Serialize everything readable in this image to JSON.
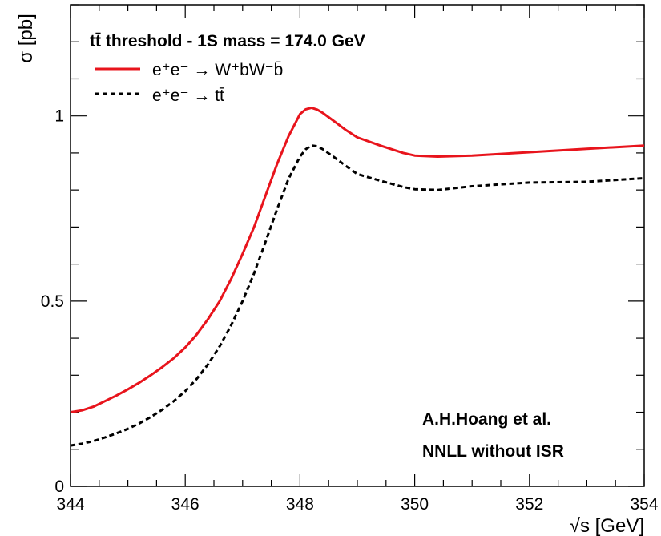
{
  "chart_data": {
    "type": "line",
    "legend_title": "tt̄ threshold - 1S mass = 174.0 GeV",
    "xlabel": "√s [GeV]",
    "ylabel": "σ [pb]",
    "xlim": [
      344,
      354
    ],
    "ylim": [
      0,
      1.3
    ],
    "x_ticks": [
      {
        "value": 344,
        "label": "344"
      },
      {
        "value": 346,
        "label": "346"
      },
      {
        "value": 348,
        "label": "348"
      },
      {
        "value": 350,
        "label": "350"
      },
      {
        "value": 352,
        "label": "352"
      },
      {
        "value": 354,
        "label": "354"
      }
    ],
    "y_ticks": [
      {
        "value": 0,
        "label": "0"
      },
      {
        "value": 0.5,
        "label": "0.5"
      },
      {
        "value": 1,
        "label": "1"
      }
    ],
    "grid": false,
    "legend_position": "top-left",
    "series": [
      {
        "name": "e⁺e⁻ → W⁺bW⁻b̄",
        "color": "#e8141c",
        "style": "solid",
        "points": [
          [
            344.0,
            0.2
          ],
          [
            344.2,
            0.205
          ],
          [
            344.4,
            0.215
          ],
          [
            344.6,
            0.23
          ],
          [
            344.8,
            0.245
          ],
          [
            345.0,
            0.262
          ],
          [
            345.2,
            0.28
          ],
          [
            345.4,
            0.3
          ],
          [
            345.6,
            0.322
          ],
          [
            345.8,
            0.346
          ],
          [
            346.0,
            0.375
          ],
          [
            346.2,
            0.41
          ],
          [
            346.4,
            0.452
          ],
          [
            346.6,
            0.5
          ],
          [
            346.8,
            0.56
          ],
          [
            347.0,
            0.628
          ],
          [
            347.2,
            0.7
          ],
          [
            347.4,
            0.785
          ],
          [
            347.6,
            0.87
          ],
          [
            347.8,
            0.945
          ],
          [
            348.0,
            1.005
          ],
          [
            348.1,
            1.018
          ],
          [
            348.2,
            1.022
          ],
          [
            348.3,
            1.017
          ],
          [
            348.4,
            1.008
          ],
          [
            348.6,
            0.985
          ],
          [
            348.8,
            0.962
          ],
          [
            349.0,
            0.942
          ],
          [
            349.4,
            0.92
          ],
          [
            349.8,
            0.9
          ],
          [
            350.0,
            0.893
          ],
          [
            350.4,
            0.89
          ],
          [
            351.0,
            0.893
          ],
          [
            352.0,
            0.902
          ],
          [
            353.0,
            0.911
          ],
          [
            354.0,
            0.92
          ]
        ]
      },
      {
        "name": "e⁺e⁻ → tt̄",
        "color": "#000000",
        "style": "dashed",
        "points": [
          [
            344.0,
            0.11
          ],
          [
            344.2,
            0.115
          ],
          [
            344.4,
            0.122
          ],
          [
            344.6,
            0.132
          ],
          [
            344.8,
            0.143
          ],
          [
            345.0,
            0.155
          ],
          [
            345.2,
            0.17
          ],
          [
            345.4,
            0.187
          ],
          [
            345.6,
            0.207
          ],
          [
            345.8,
            0.23
          ],
          [
            346.0,
            0.257
          ],
          [
            346.2,
            0.29
          ],
          [
            346.4,
            0.33
          ],
          [
            346.6,
            0.378
          ],
          [
            346.8,
            0.435
          ],
          [
            347.0,
            0.5
          ],
          [
            347.2,
            0.575
          ],
          [
            347.4,
            0.66
          ],
          [
            347.6,
            0.748
          ],
          [
            347.8,
            0.83
          ],
          [
            348.0,
            0.89
          ],
          [
            348.1,
            0.91
          ],
          [
            348.2,
            0.92
          ],
          [
            348.3,
            0.918
          ],
          [
            348.4,
            0.91
          ],
          [
            348.6,
            0.888
          ],
          [
            348.8,
            0.865
          ],
          [
            349.0,
            0.843
          ],
          [
            349.4,
            0.825
          ],
          [
            349.8,
            0.808
          ],
          [
            350.0,
            0.802
          ],
          [
            350.4,
            0.8
          ],
          [
            351.0,
            0.81
          ],
          [
            352.0,
            0.82
          ],
          [
            353.0,
            0.822
          ],
          [
            354.0,
            0.832
          ]
        ]
      }
    ],
    "annotations": [
      "A.H.Hoang et al.",
      "NNLL without ISR"
    ]
  }
}
